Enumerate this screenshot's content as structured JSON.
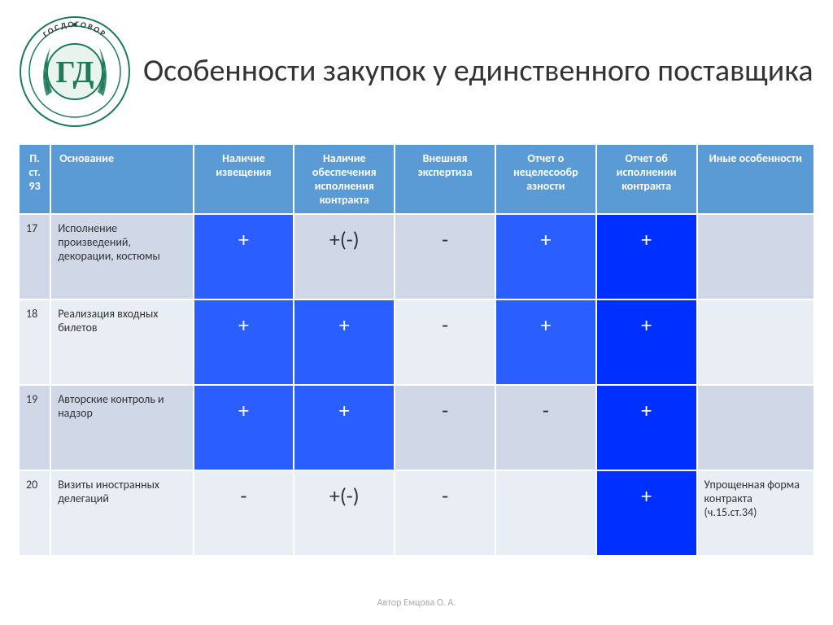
{
  "title": "Особенности закупок у единственного поставщика",
  "footer": "Автор Емцова О. А.",
  "logo": {
    "top_text": "ГОСДОГОВОР",
    "letters": "ГД",
    "colors": {
      "ring": "#1f7a5a",
      "inner": "#cfe8de",
      "text": "#1f7a5a",
      "wreath": "#1f7a5a"
    }
  },
  "columns": [
    "П. ст. 93",
    "Основание",
    "Наличие извещения",
    "Наличие обеспечения исполнения контракта",
    "Внешняя экспертиза",
    "Отчет о нецелесообр азности",
    "Отчет об исполнении контракта",
    "Иные особенности"
  ],
  "palette": {
    "header_bg": "#5b9bd5",
    "header_fg": "#ffffff",
    "band_odd": "#d0d8e8",
    "band_even": "#e9edf4",
    "mark_blue_bold": "#2a5eff",
    "mark_blue_deep": "#0030ff"
  },
  "rows": [
    {
      "num": "17",
      "basis": "Исполнение произведений, декорации, костюмы",
      "band": "odd",
      "cells": [
        {
          "text": "+",
          "bg": "bg-blue-bold"
        },
        {
          "text": "+(-)",
          "bg": "bg-gray-1"
        },
        {
          "text": "-",
          "bg": "bg-gray-1"
        },
        {
          "text": "+",
          "bg": "bg-blue-bold"
        },
        {
          "text": "+",
          "bg": "bg-blue-deep"
        }
      ],
      "other": ""
    },
    {
      "num": "18",
      "basis": "Реализация входных билетов",
      "band": "even",
      "cells": [
        {
          "text": "+",
          "bg": "bg-blue-bold"
        },
        {
          "text": "+",
          "bg": "bg-blue-bold"
        },
        {
          "text": "-",
          "bg": "bg-gray-2"
        },
        {
          "text": "+",
          "bg": "bg-blue-bold"
        },
        {
          "text": "+",
          "bg": "bg-blue-deep"
        }
      ],
      "other": ""
    },
    {
      "num": "19",
      "basis": "Авторские контроль и надзор",
      "band": "odd",
      "cells": [
        {
          "text": "+",
          "bg": "bg-blue-bold"
        },
        {
          "text": "+",
          "bg": "bg-blue-bold"
        },
        {
          "text": "-",
          "bg": "bg-gray-1"
        },
        {
          "text": "-",
          "bg": "bg-gray-1"
        },
        {
          "text": "+",
          "bg": "bg-blue-deep"
        }
      ],
      "other": ""
    },
    {
      "num": "20",
      "basis": "Визиты иностранных делегаций",
      "band": "even",
      "cells": [
        {
          "text": "-",
          "bg": "bg-gray-2"
        },
        {
          "text": "+(-)",
          "bg": "bg-gray-2"
        },
        {
          "text": "-",
          "bg": "bg-gray-2"
        },
        {
          "text": "",
          "bg": "bg-gray-2"
        },
        {
          "text": "+",
          "bg": "bg-blue-deep"
        }
      ],
      "other": "Упрощенная форма контракта (ч.15.ст.34)"
    }
  ]
}
